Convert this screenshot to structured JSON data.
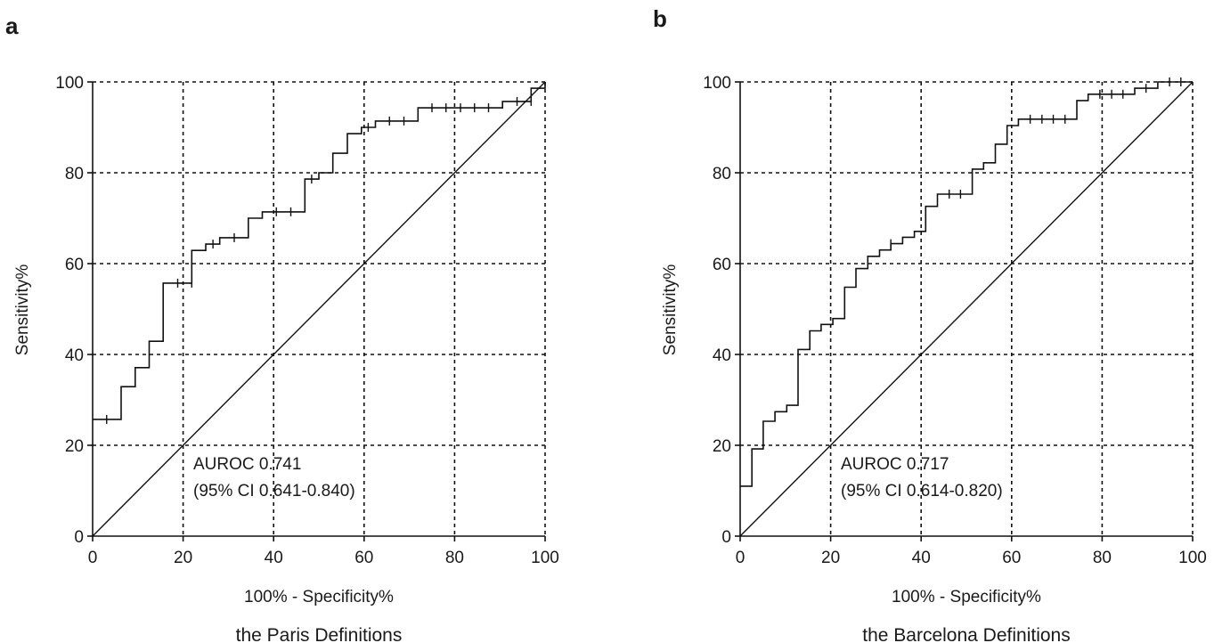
{
  "chart_data": [
    {
      "panel": "a",
      "type": "line",
      "xlabel": "100% - Specificity%",
      "ylabel": "Sensitivity%",
      "caption": "the Paris Definitions",
      "xlim": [
        0,
        100
      ],
      "ylim": [
        0,
        100
      ],
      "xticks": [
        0,
        20,
        40,
        60,
        80,
        100
      ],
      "yticks": [
        0,
        20,
        40,
        60,
        80,
        100
      ],
      "grid": true,
      "annotation": [
        "AUROC 0.741",
        "(95% CI 0.641-0.840)"
      ],
      "series": [
        {
          "steps": [
            [
              0,
              25.7
            ],
            [
              6.3,
              25.7
            ],
            [
              6.3,
              32.9
            ],
            [
              9.4,
              32.9
            ],
            [
              9.4,
              37.1
            ],
            [
              12.5,
              37.1
            ],
            [
              12.5,
              42.9
            ],
            [
              15.6,
              42.9
            ],
            [
              15.6,
              55.7
            ],
            [
              21.9,
              55.7
            ],
            [
              21.9,
              62.9
            ],
            [
              25,
              62.9
            ],
            [
              25,
              64.3
            ],
            [
              28.1,
              64.3
            ],
            [
              28.1,
              65.7
            ],
            [
              34.4,
              65.7
            ],
            [
              34.4,
              70
            ],
            [
              37.5,
              70
            ],
            [
              37.5,
              71.4
            ],
            [
              46.9,
              71.4
            ],
            [
              46.9,
              78.6
            ],
            [
              50,
              78.6
            ],
            [
              50,
              80
            ],
            [
              53.1,
              80
            ],
            [
              53.1,
              84.3
            ],
            [
              56.3,
              84.3
            ],
            [
              56.3,
              88.6
            ],
            [
              59.4,
              88.6
            ],
            [
              59.4,
              90
            ],
            [
              62.5,
              90
            ],
            [
              62.5,
              91.4
            ],
            [
              71.9,
              91.4
            ],
            [
              71.9,
              94.3
            ],
            [
              90.6,
              94.3
            ],
            [
              90.6,
              95.7
            ],
            [
              96.9,
              95.7
            ],
            [
              96.9,
              98.6
            ],
            [
              100,
              98.6
            ],
            [
              100,
              100
            ]
          ],
          "censor_marks": [
            [
              3.1,
              25.7
            ],
            [
              18.8,
              55.7
            ],
            [
              21.9,
              55.7
            ],
            [
              26.6,
              64.3
            ],
            [
              31.3,
              65.7
            ],
            [
              40.6,
              71.4
            ],
            [
              43.8,
              71.4
            ],
            [
              48.4,
              78.6
            ],
            [
              60.9,
              90
            ],
            [
              65.6,
              91.4
            ],
            [
              68.8,
              91.4
            ],
            [
              75,
              94.3
            ],
            [
              78.1,
              94.3
            ],
            [
              81.3,
              94.3
            ],
            [
              84.4,
              94.3
            ],
            [
              87.5,
              94.3
            ],
            [
              93.8,
              95.7
            ],
            [
              96.9,
              95.7
            ]
          ]
        }
      ]
    },
    {
      "panel": "b",
      "type": "line",
      "xlabel": "100% - Specificity%",
      "ylabel": "Sensitivity%",
      "caption": "the Barcelona Definitions",
      "xlim": [
        0,
        100
      ],
      "ylim": [
        0,
        100
      ],
      "xticks": [
        0,
        20,
        40,
        60,
        80,
        100
      ],
      "yticks": [
        0,
        20,
        40,
        60,
        80,
        100
      ],
      "grid": true,
      "annotation": [
        "AUROC 0.717",
        "(95% CI 0.614-0.820)"
      ],
      "series": [
        {
          "steps": [
            [
              0,
              11
            ],
            [
              2.6,
              11
            ],
            [
              2.6,
              19.2
            ],
            [
              5.1,
              19.2
            ],
            [
              5.1,
              25.3
            ],
            [
              7.7,
              25.3
            ],
            [
              7.7,
              27.4
            ],
            [
              10.3,
              27.4
            ],
            [
              10.3,
              28.8
            ],
            [
              12.8,
              28.8
            ],
            [
              12.8,
              41.1
            ],
            [
              15.4,
              41.1
            ],
            [
              15.4,
              45.2
            ],
            [
              17.9,
              45.2
            ],
            [
              17.9,
              46.6
            ],
            [
              20.5,
              46.6
            ],
            [
              20.5,
              47.9
            ],
            [
              23.1,
              47.9
            ],
            [
              23.1,
              54.8
            ],
            [
              25.6,
              54.8
            ],
            [
              25.6,
              58.9
            ],
            [
              28.2,
              58.9
            ],
            [
              28.2,
              61.6
            ],
            [
              30.8,
              61.6
            ],
            [
              30.8,
              63
            ],
            [
              33.3,
              63
            ],
            [
              33.3,
              64.4
            ],
            [
              35.9,
              64.4
            ],
            [
              35.9,
              65.8
            ],
            [
              38.5,
              65.8
            ],
            [
              38.5,
              67.1
            ],
            [
              41,
              67.1
            ],
            [
              41,
              72.6
            ],
            [
              43.6,
              72.6
            ],
            [
              43.6,
              75.3
            ],
            [
              51.3,
              75.3
            ],
            [
              51.3,
              80.8
            ],
            [
              53.8,
              80.8
            ],
            [
              53.8,
              82.2
            ],
            [
              56.4,
              82.2
            ],
            [
              56.4,
              86.3
            ],
            [
              59,
              86.3
            ],
            [
              59,
              90.4
            ],
            [
              61.5,
              90.4
            ],
            [
              61.5,
              91.8
            ],
            [
              74.4,
              91.8
            ],
            [
              74.4,
              95.9
            ],
            [
              76.9,
              95.9
            ],
            [
              76.9,
              97.3
            ],
            [
              87.2,
              97.3
            ],
            [
              87.2,
              98.6
            ],
            [
              92.3,
              98.6
            ],
            [
              92.3,
              100
            ],
            [
              100,
              100
            ]
          ],
          "censor_marks": [
            [
              33.3,
              64.4
            ],
            [
              46.2,
              75.3
            ],
            [
              48.7,
              75.3
            ],
            [
              64.1,
              91.8
            ],
            [
              66.7,
              91.8
            ],
            [
              69.2,
              91.8
            ],
            [
              71.8,
              91.8
            ],
            [
              79.5,
              97.3
            ],
            [
              82.1,
              97.3
            ],
            [
              84.6,
              97.3
            ],
            [
              89.7,
              98.6
            ],
            [
              94.9,
              100
            ],
            [
              97.4,
              100
            ]
          ]
        }
      ]
    }
  ]
}
